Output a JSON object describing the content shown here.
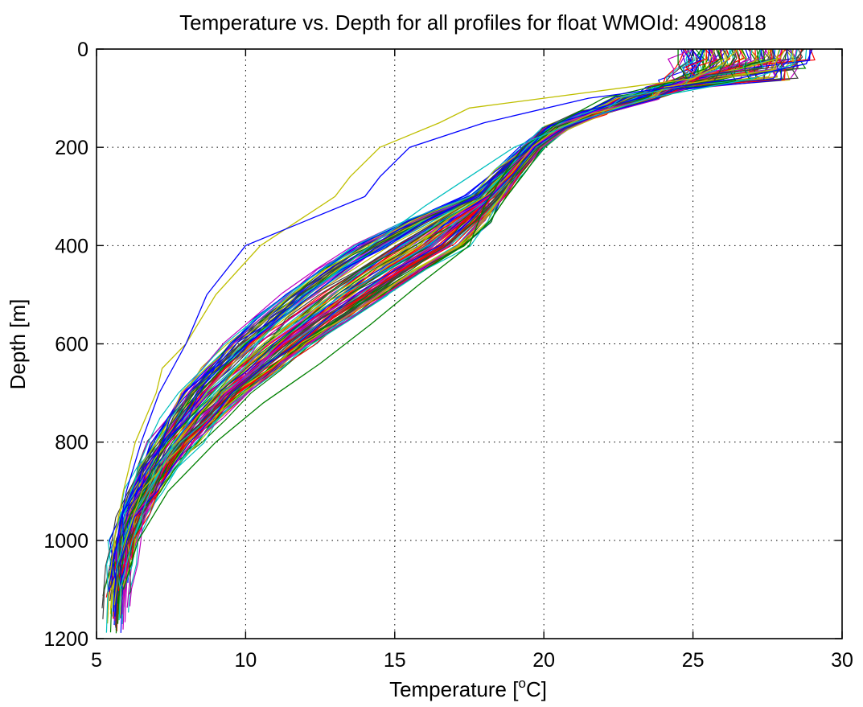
{
  "chart_data": {
    "type": "line",
    "title": "Temperature vs. Depth for all profiles for float WMOId: 4900818",
    "xlabel": {
      "prefix": "Temperature [",
      "superscript": "o",
      "suffix": "C]"
    },
    "ylabel": "Depth [m]",
    "xlim": [
      5,
      30
    ],
    "ylim": [
      0,
      1200
    ],
    "y_reversed": true,
    "grid": true,
    "grid_style": "dotted",
    "legend": "none",
    "x_ticks": [
      5,
      10,
      15,
      20,
      25,
      30
    ],
    "y_ticks": [
      0,
      200,
      400,
      600,
      800,
      1000,
      1200
    ],
    "x_tick_labels": [
      "5",
      "10",
      "15",
      "20",
      "25",
      "30"
    ],
    "y_tick_labels": [
      "0",
      "200",
      "400",
      "600",
      "800",
      "1000",
      "1200"
    ],
    "series_colors": [
      "#0000ff",
      "#008000",
      "#ff0000",
      "#00bfbf",
      "#bf00bf",
      "#bfbf00",
      "#404040"
    ],
    "profile_count": 120,
    "representative_profiles": [
      {
        "name_hidden": true,
        "depth": [
          0,
          30,
          60,
          100,
          150,
          200,
          260,
          320,
          400,
          480,
          560,
          640,
          720,
          800,
          900,
          1000,
          1100
        ],
        "temperature": [
          24.5,
          24.5,
          24.8,
          22.0,
          20.5,
          19.3,
          18.6,
          18.0,
          17.5,
          15.8,
          14.2,
          12.5,
          10.6,
          9.0,
          7.4,
          6.4,
          5.9
        ]
      },
      {
        "name_hidden": true,
        "depth": [
          0,
          30,
          60,
          100,
          150,
          200,
          260,
          320,
          400,
          480,
          560,
          640,
          720,
          800,
          900,
          1000,
          1100
        ],
        "temperature": [
          28.5,
          28.4,
          27.0,
          23.5,
          21.0,
          19.0,
          17.5,
          16.0,
          14.2,
          12.5,
          11.0,
          9.8,
          8.6,
          7.6,
          6.8,
          6.2,
          5.8
        ]
      },
      {
        "name_hidden": true,
        "depth": [
          0,
          30,
          60,
          100,
          120,
          150,
          200,
          260,
          300,
          400,
          500,
          600,
          650,
          700,
          800,
          900,
          1000,
          1100
        ],
        "temperature": [
          26.5,
          26.0,
          25.0,
          20.0,
          17.5,
          16.5,
          14.5,
          13.5,
          13.0,
          10.5,
          9.0,
          8.0,
          7.2,
          7.0,
          6.3,
          5.9,
          5.6,
          5.4
        ]
      },
      {
        "name_hidden": true,
        "depth": [
          0,
          30,
          60,
          100,
          150,
          200,
          260,
          300,
          350,
          400,
          500,
          600,
          700,
          800,
          900,
          1000,
          1100
        ],
        "temperature": [
          29.0,
          28.8,
          26.5,
          21.5,
          18.0,
          15.5,
          14.5,
          14.0,
          12.0,
          10.0,
          8.7,
          8.0,
          7.1,
          6.5,
          6.0,
          5.7,
          5.4
        ]
      }
    ]
  }
}
